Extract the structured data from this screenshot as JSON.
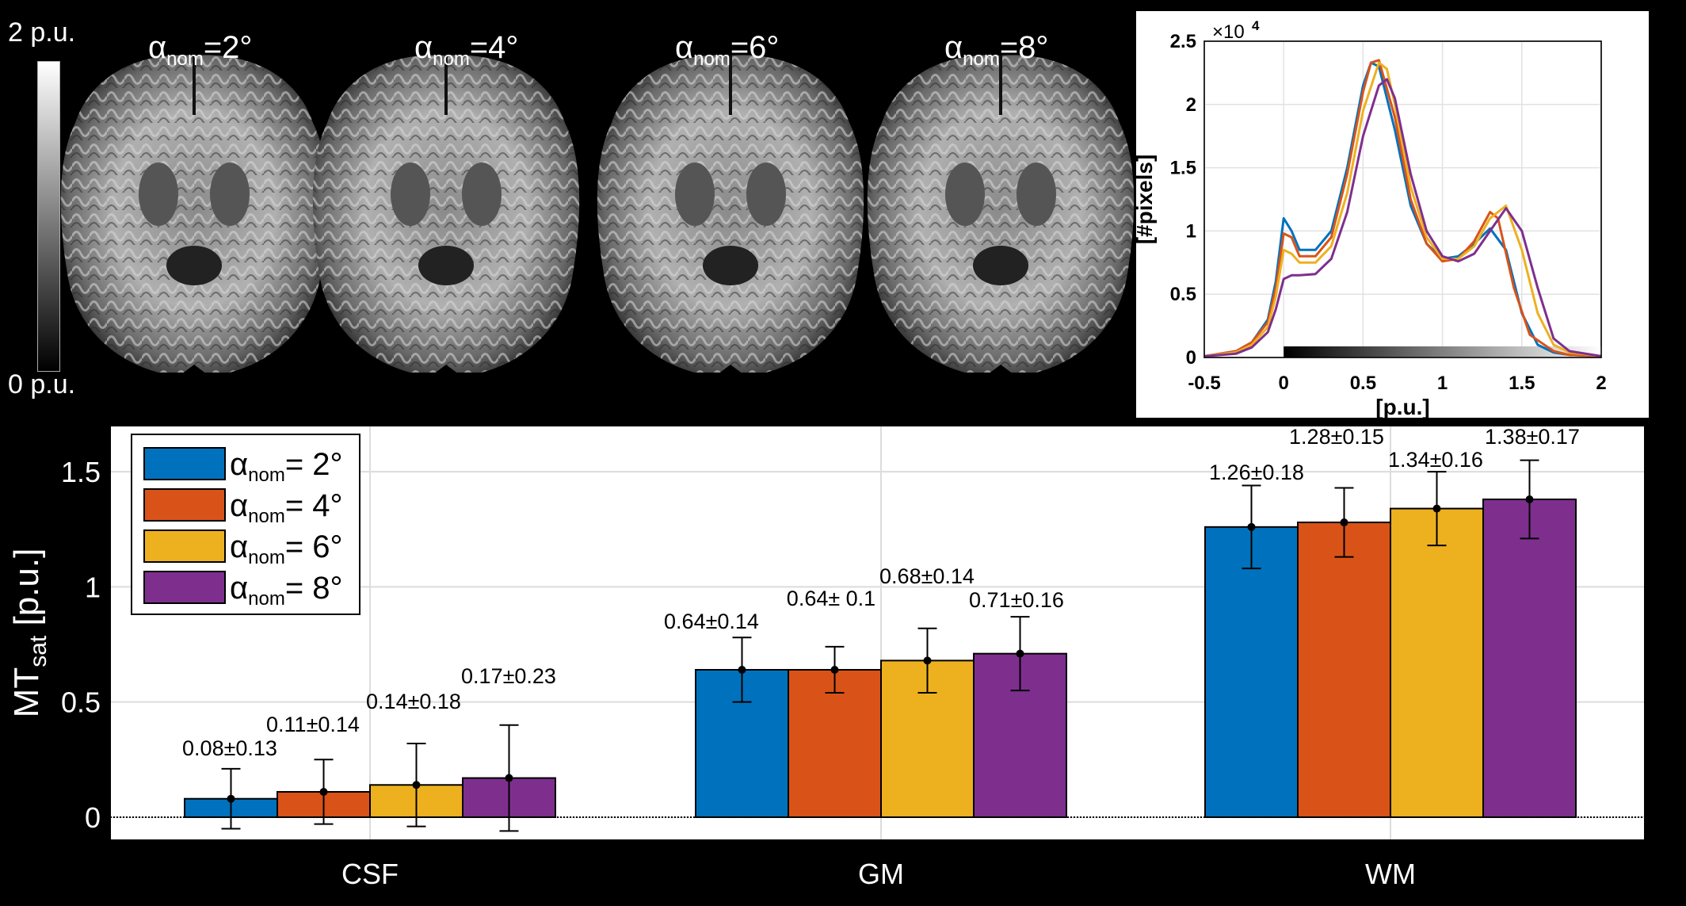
{
  "colorbar": {
    "top_label": "2 p.u.",
    "bottom_label": "0 p.u."
  },
  "brain_titles": [
    {
      "alpha": "α",
      "sub": "nom",
      "value": "=2°"
    },
    {
      "alpha": "α",
      "sub": "nom",
      "value": "=4°"
    },
    {
      "alpha": "α",
      "sub": "nom",
      "value": "=6°"
    },
    {
      "alpha": "α",
      "sub": "nom",
      "value": "=8°"
    }
  ],
  "colors": {
    "blue": "#0072BD",
    "orange": "#D95319",
    "yellow": "#EDB120",
    "purple": "#7E2F8E"
  },
  "chart_data": [
    {
      "type": "line",
      "xlabel": "[p.u.]",
      "ylabel": "[#pixels]",
      "y_multiplier": "×10",
      "y_multiplier_exp": "4",
      "xlim": [
        -0.5,
        2
      ],
      "ylim": [
        0,
        2.5
      ],
      "xticks": [
        "-0.5",
        "0",
        "0.5",
        "1",
        "1.5",
        "2"
      ],
      "yticks": [
        "0",
        "0.5",
        "1",
        "1.5",
        "2",
        "2.5"
      ],
      "grid": true,
      "colorbar": "grayscale 0 to 2",
      "series": [
        {
          "color": "#0072BD",
          "x": [
            -0.5,
            -0.3,
            -0.2,
            -0.1,
            -0.05,
            0,
            0.05,
            0.1,
            0.2,
            0.3,
            0.4,
            0.5,
            0.55,
            0.6,
            0.7,
            0.8,
            0.9,
            1.0,
            1.1,
            1.2,
            1.3,
            1.4,
            1.5,
            1.6,
            1.7,
            1.8,
            2.0
          ],
          "y": [
            0.01,
            0.05,
            0.12,
            0.3,
            0.6,
            1.1,
            1.0,
            0.85,
            0.85,
            1.0,
            1.5,
            2.15,
            2.33,
            2.3,
            1.8,
            1.2,
            0.9,
            0.78,
            0.8,
            0.9,
            1.02,
            0.85,
            0.35,
            0.1,
            0.04,
            0.02,
            0.01
          ]
        },
        {
          "color": "#D95319",
          "x": [
            -0.5,
            -0.3,
            -0.2,
            -0.1,
            -0.05,
            0,
            0.05,
            0.1,
            0.2,
            0.3,
            0.4,
            0.5,
            0.55,
            0.6,
            0.7,
            0.8,
            0.9,
            1.0,
            1.1,
            1.2,
            1.3,
            1.35,
            1.45,
            1.55,
            1.7,
            1.8,
            2.0
          ],
          "y": [
            0.01,
            0.05,
            0.12,
            0.28,
            0.55,
            0.98,
            0.95,
            0.8,
            0.8,
            0.95,
            1.45,
            2.1,
            2.33,
            2.35,
            1.9,
            1.25,
            0.9,
            0.76,
            0.78,
            0.92,
            1.15,
            1.1,
            0.55,
            0.18,
            0.05,
            0.02,
            0.01
          ]
        },
        {
          "color": "#EDB120",
          "x": [
            -0.5,
            -0.3,
            -0.2,
            -0.1,
            -0.05,
            0,
            0.05,
            0.1,
            0.2,
            0.3,
            0.4,
            0.5,
            0.6,
            0.65,
            0.7,
            0.8,
            0.9,
            1.0,
            1.1,
            1.2,
            1.3,
            1.4,
            1.5,
            1.6,
            1.7,
            1.8,
            2.0
          ],
          "y": [
            0.01,
            0.04,
            0.1,
            0.24,
            0.48,
            0.85,
            0.82,
            0.75,
            0.75,
            0.88,
            1.3,
            1.95,
            2.33,
            2.28,
            2.0,
            1.35,
            0.95,
            0.78,
            0.78,
            0.88,
            1.1,
            1.2,
            0.85,
            0.35,
            0.1,
            0.04,
            0.01
          ]
        },
        {
          "color": "#7E2F8E",
          "x": [
            -0.5,
            -0.3,
            -0.2,
            -0.1,
            -0.05,
            0,
            0.05,
            0.1,
            0.2,
            0.3,
            0.4,
            0.5,
            0.6,
            0.65,
            0.7,
            0.8,
            0.9,
            1.0,
            1.1,
            1.2,
            1.3,
            1.4,
            1.5,
            1.6,
            1.7,
            1.8,
            2.0
          ],
          "y": [
            0.01,
            0.03,
            0.08,
            0.2,
            0.38,
            0.62,
            0.65,
            0.65,
            0.66,
            0.78,
            1.15,
            1.75,
            2.15,
            2.2,
            2.05,
            1.45,
            1.0,
            0.8,
            0.76,
            0.82,
            1.0,
            1.18,
            1.0,
            0.55,
            0.15,
            0.05,
            0.01
          ]
        }
      ]
    },
    {
      "type": "bar",
      "categories": [
        "CSF",
        "GM",
        "WM"
      ],
      "ylabel": "MT",
      "ylabel_sub": "sat",
      "ylabel_unit": " [p.u.]",
      "ylim": [
        -0.1,
        1.7
      ],
      "yticks": [
        "0",
        "0.5",
        "1",
        "1.5"
      ],
      "grid": true,
      "legend_position": "top-left",
      "series": [
        {
          "name": "= 2°",
          "legend_alpha": "α",
          "legend_sub": "nom",
          "color": "#0072BD",
          "values": [
            0.08,
            0.64,
            1.26
          ],
          "errors": [
            0.13,
            0.14,
            0.18
          ],
          "labels": [
            "0.08±0.13",
            "0.64±0.14",
            "1.26±0.18"
          ]
        },
        {
          "name": "= 4°",
          "legend_alpha": "α",
          "legend_sub": "nom",
          "color": "#D95319",
          "values": [
            0.11,
            0.64,
            1.28
          ],
          "errors": [
            0.14,
            0.1,
            0.15
          ],
          "labels": [
            "0.11±0.14",
            "0.64± 0.1",
            "1.28±0.15"
          ]
        },
        {
          "name": "= 6°",
          "legend_alpha": "α",
          "legend_sub": "nom",
          "color": "#EDB120",
          "values": [
            0.14,
            0.68,
            1.34
          ],
          "errors": [
            0.18,
            0.14,
            0.16
          ],
          "labels": [
            "0.14±0.18",
            "0.68±0.14",
            "1.34±0.16"
          ]
        },
        {
          "name": "= 8°",
          "legend_alpha": "α",
          "legend_sub": "nom",
          "color": "#7E2F8E",
          "values": [
            0.17,
            0.71,
            1.38
          ],
          "errors": [
            0.23,
            0.16,
            0.17
          ],
          "labels": [
            "0.17±0.23",
            "0.71±0.16",
            "1.38±0.17"
          ]
        }
      ]
    }
  ]
}
